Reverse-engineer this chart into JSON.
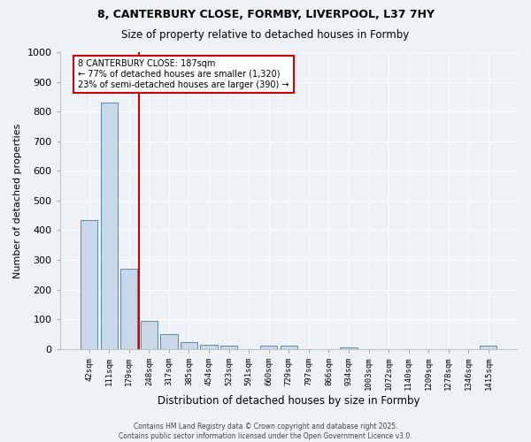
{
  "title_line1": "8, CANTERBURY CLOSE, FORMBY, LIVERPOOL, L37 7HY",
  "title_line2": "Size of property relative to detached houses in Formby",
  "xlabel": "Distribution of detached houses by size in Formby",
  "ylabel": "Number of detached properties",
  "categories": [
    "42sqm",
    "111sqm",
    "179sqm",
    "248sqm",
    "317sqm",
    "385sqm",
    "454sqm",
    "523sqm",
    "591sqm",
    "660sqm",
    "729sqm",
    "797sqm",
    "866sqm",
    "934sqm",
    "1003sqm",
    "1072sqm",
    "1140sqm",
    "1209sqm",
    "1278sqm",
    "1346sqm",
    "1415sqm"
  ],
  "values": [
    435,
    830,
    270,
    95,
    50,
    23,
    15,
    10,
    0,
    10,
    10,
    0,
    0,
    5,
    0,
    0,
    0,
    0,
    0,
    0,
    10
  ],
  "bar_color": "#c8d8e8",
  "bar_edge_color": "#5a8ab0",
  "vline_x_index": 2,
  "vline_color": "#cc0000",
  "annotation_text": "8 CANTERBURY CLOSE: 187sqm\n← 77% of detached houses are smaller (1,320)\n23% of semi-detached houses are larger (390) →",
  "annotation_box_color": "#ffffff",
  "annotation_border_color": "#cc0000",
  "ylim": [
    0,
    1000
  ],
  "yticks": [
    0,
    100,
    200,
    300,
    400,
    500,
    600,
    700,
    800,
    900,
    1000
  ],
  "bg_color": "#eef2f7",
  "grid_color": "#ffffff",
  "footer_text": "Contains HM Land Registry data © Crown copyright and database right 2025.\nContains public sector information licensed under the Open Government Licence v3.0."
}
